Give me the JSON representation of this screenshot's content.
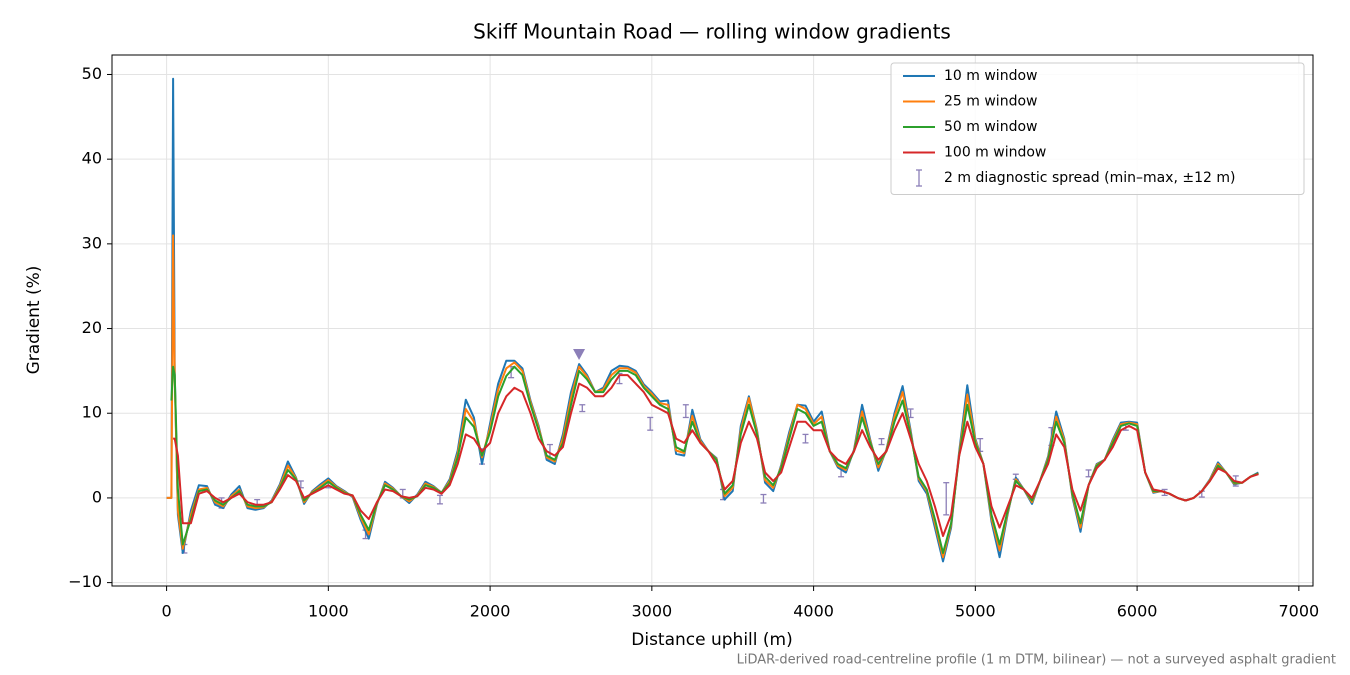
{
  "chart_data": {
    "type": "line",
    "title": "Skiff Mountain Road — rolling window gradients",
    "x_label": "Distance uphill (m)",
    "y_label": "Gradient (%)",
    "footnote": "LiDAR-derived road-centreline profile (1 m DTM, bilinear) — not a surveyed asphalt gradient",
    "xlim": [
      -337.5,
      7087.5
    ],
    "ylim": [
      -10.4,
      52.3
    ],
    "xticks": [
      0,
      1000,
      2000,
      3000,
      4000,
      5000,
      6000,
      7000
    ],
    "yticks": [
      {
        "value": -10,
        "label": "−10"
      },
      0,
      10,
      20,
      30,
      40,
      50
    ],
    "grid": true,
    "legend": "upper right",
    "x": [
      0,
      30,
      40,
      50,
      70,
      100,
      150,
      200,
      250,
      300,
      350,
      400,
      450,
      500,
      550,
      600,
      650,
      700,
      750,
      800,
      850,
      900,
      950,
      1000,
      1050,
      1100,
      1150,
      1200,
      1250,
      1300,
      1350,
      1400,
      1450,
      1500,
      1550,
      1600,
      1650,
      1700,
      1750,
      1800,
      1850,
      1900,
      1950,
      2000,
      2050,
      2100,
      2150,
      2200,
      2250,
      2300,
      2350,
      2400,
      2450,
      2500,
      2550,
      2600,
      2650,
      2700,
      2750,
      2800,
      2850,
      2900,
      2950,
      3000,
      3050,
      3100,
      3150,
      3200,
      3250,
      3300,
      3350,
      3400,
      3450,
      3500,
      3550,
      3600,
      3650,
      3700,
      3750,
      3800,
      3850,
      3900,
      3950,
      4000,
      4050,
      4100,
      4150,
      4200,
      4250,
      4300,
      4350,
      4400,
      4450,
      4500,
      4550,
      4600,
      4650,
      4700,
      4750,
      4800,
      4850,
      4900,
      4950,
      5000,
      5050,
      5100,
      5150,
      5200,
      5250,
      5300,
      5350,
      5400,
      5450,
      5500,
      5550,
      5600,
      5650,
      5700,
      5750,
      5800,
      5850,
      5900,
      5950,
      6000,
      6050,
      6100,
      6150,
      6200,
      6250,
      6300,
      6350,
      6400,
      6450,
      6500,
      6550,
      6600,
      6650,
      6700,
      6750
    ],
    "series": [
      {
        "name": "10 m window",
        "color": "#1f77b4",
        "values": [
          0,
          0,
          49.5,
          15,
          -2,
          -6.5,
          -1.5,
          1.5,
          1.4,
          -0.8,
          -1.2,
          0.4,
          1.4,
          -1.2,
          -1.4,
          -1.2,
          -0.3,
          1.6,
          4.3,
          2.4,
          -0.7,
          0.8,
          1.6,
          2.3,
          1.4,
          0.8,
          0.1,
          -2.6,
          -4.8,
          -0.8,
          1.9,
          1.2,
          0.2,
          -0.6,
          0.4,
          1.9,
          1.4,
          0.6,
          2.2,
          5.6,
          11.6,
          9.5,
          4,
          8.8,
          13.5,
          16.2,
          16.2,
          15.3,
          11.5,
          8.5,
          4.5,
          4,
          7.5,
          12.5,
          15.8,
          14.5,
          12.5,
          13,
          15,
          15.6,
          15.5,
          15,
          13.4,
          12.5,
          11.4,
          11.5,
          5.2,
          5,
          10.4,
          6.9,
          5.5,
          4.7,
          -0.2,
          0.8,
          8.5,
          12,
          8,
          1.8,
          0.8,
          3.9,
          7.8,
          11,
          10.9,
          9,
          10.2,
          5.5,
          3.6,
          3,
          5.7,
          11,
          6.9,
          3.2,
          5.7,
          10,
          13.2,
          8,
          2,
          0.5,
          -3.5,
          -7.5,
          -3.5,
          5.5,
          13.3,
          7,
          4,
          -2.8,
          -7,
          -1.9,
          2.4,
          1,
          -0.7,
          2,
          4.9,
          10.2,
          7,
          0.1,
          -4,
          1.5,
          4,
          4.5,
          6.9,
          8.9,
          9,
          8.9,
          3,
          0.6,
          0.8,
          0.5,
          0,
          -0.3,
          0,
          0.8,
          2.2,
          4.2,
          3,
          1.6,
          1.8,
          2.5,
          3
        ]
      },
      {
        "name": "25 m window",
        "color": "#ff7f0e",
        "values": [
          0,
          0,
          31,
          14,
          -1.5,
          -6,
          -2,
          1,
          1.2,
          -0.5,
          -1,
          0.2,
          1,
          -1,
          -1.2,
          -1.1,
          -0.4,
          1.4,
          3.8,
          2.3,
          -0.5,
          0.7,
          1.4,
          2.1,
          1.3,
          0.7,
          0.2,
          -2.3,
          -4.3,
          -0.7,
          1.7,
          1.1,
          0.2,
          -0.4,
          0.3,
          1.7,
          1.3,
          0.6,
          2,
          5.2,
          10.5,
          9,
          4.8,
          8.3,
          12.8,
          15.3,
          16,
          15,
          11.3,
          8.3,
          4.8,
          4.3,
          7,
          11.8,
          15.5,
          14.3,
          12.5,
          12.8,
          14.5,
          15.3,
          15.3,
          14.8,
          13.2,
          12.3,
          11.2,
          11,
          5.6,
          5.3,
          9.7,
          6.7,
          5.5,
          4.6,
          0.2,
          1.2,
          8,
          11.8,
          7.8,
          2.1,
          1.2,
          3.7,
          7.4,
          11,
          10.5,
          8.7,
          9.6,
          5.5,
          3.8,
          3.3,
          5.6,
          10.2,
          6.7,
          3.6,
          5.6,
          9.6,
          12.5,
          7.7,
          2.3,
          0.8,
          -3,
          -7,
          -3.2,
          5.2,
          12.2,
          6.8,
          4,
          -2.4,
          -6.2,
          -1.7,
          2.2,
          1,
          -0.5,
          2,
          4.7,
          9.6,
          6.8,
          0.3,
          -3.5,
          1.5,
          3.9,
          4.5,
          6.7,
          8.7,
          8.9,
          8.7,
          3,
          0.7,
          0.8,
          0.5,
          0,
          -0.3,
          0,
          0.8,
          2.1,
          4,
          3,
          1.7,
          1.8,
          2.5,
          2.9
        ]
      },
      {
        "name": "50 m window",
        "color": "#2ca02c",
        "values": [
          null,
          11.5,
          15.5,
          14.5,
          1,
          -5.5,
          -2.5,
          0.8,
          1,
          -0.3,
          -0.8,
          0,
          0.8,
          -0.8,
          -1,
          -1,
          -0.5,
          1.2,
          3.3,
          2.2,
          -0.3,
          0.6,
          1.2,
          1.9,
          1.2,
          0.6,
          0.3,
          -2,
          -3.8,
          -0.6,
          1.5,
          1,
          0.2,
          -0.2,
          0.2,
          1.5,
          1.2,
          0.6,
          1.8,
          4.8,
          9.5,
          8.4,
          5,
          7.8,
          12,
          14.4,
          15.5,
          14.5,
          11,
          8,
          5,
          4.5,
          6.5,
          11,
          15,
          14,
          12.5,
          12.5,
          14,
          15,
          15,
          14.5,
          13,
          12,
          11,
          10.5,
          6,
          5.5,
          9,
          6.5,
          5.5,
          4.5,
          0.5,
          1.5,
          7.5,
          11,
          7.5,
          2.5,
          1.5,
          3.5,
          7,
          10.5,
          10,
          8.5,
          9,
          5.5,
          4,
          3.5,
          5.5,
          9.5,
          6.5,
          4,
          5.5,
          9,
          11.5,
          7.5,
          2.5,
          1,
          -2.5,
          -6.5,
          -3,
          5,
          11,
          6.5,
          4,
          -2,
          -5.5,
          -1.5,
          2,
          1,
          -0.3,
          2,
          4.5,
          9,
          6.5,
          0.5,
          -3,
          1.5,
          3.8,
          4.5,
          6.5,
          8.5,
          8.8,
          8.5,
          3,
          0.8,
          0.8,
          0.5,
          0,
          -0.3,
          0,
          0.8,
          2,
          3.8,
          3,
          1.8,
          1.8,
          2.5,
          2.9
        ]
      },
      {
        "name": "100 m window",
        "color": "#d62728",
        "values": [
          null,
          null,
          7,
          7,
          5,
          -3,
          -3,
          0.5,
          0.8,
          0,
          -0.5,
          0,
          0.5,
          -0.5,
          -0.8,
          -0.8,
          -0.5,
          1,
          2.7,
          2,
          0,
          0.5,
          1,
          1.5,
          1,
          0.5,
          0.3,
          -1.5,
          -2.5,
          -0.5,
          1,
          0.8,
          0.2,
          0,
          0.2,
          1.2,
          1,
          0.5,
          1.5,
          4,
          7.5,
          7,
          5.5,
          6.5,
          10,
          12,
          13,
          12.5,
          10,
          7,
          5.5,
          5,
          6,
          10,
          13.5,
          13,
          12,
          12,
          13,
          14.5,
          14.5,
          13.5,
          12.5,
          11,
          10.5,
          10,
          7,
          6.5,
          8,
          6.5,
          5.5,
          4,
          1,
          2,
          6.5,
          9,
          7,
          3,
          2,
          3,
          6,
          9,
          9,
          8,
          8,
          5.5,
          4.5,
          4,
          5.5,
          8,
          6,
          4.5,
          5.5,
          8,
          10,
          7,
          4,
          2,
          -1,
          -4.5,
          -2,
          5,
          9,
          6,
          4,
          -1,
          -3.5,
          -1,
          1.5,
          1,
          0,
          2,
          4,
          7.5,
          6,
          1,
          -1.5,
          1.5,
          3.5,
          4.5,
          6,
          8,
          8.5,
          8,
          3,
          1,
          0.8,
          0.5,
          0,
          -0.3,
          0,
          0.8,
          2,
          3.5,
          3,
          2,
          1.8,
          2.5,
          2.8
        ]
      }
    ],
    "diagnostic": {
      "name": "2 m diagnostic spread (min–max, ±12 m)",
      "color": "#8c7fb8",
      "x": [
        110,
        340,
        560,
        830,
        1000,
        1230,
        1460,
        1690,
        1950,
        2130,
        2370,
        2570,
        2800,
        2990,
        3210,
        3440,
        3690,
        3950,
        4170,
        4420,
        4600,
        4820,
        5030,
        5250,
        5470,
        5700,
        5930,
        6170,
        6400,
        6610
      ],
      "min": [
        -6.5,
        -1.2,
        -1.2,
        1.2,
        1.2,
        -4.8,
        0,
        -0.7,
        4,
        14.2,
        4.5,
        10.2,
        13.5,
        8,
        9.5,
        -0.2,
        -0.6,
        6.5,
        2.5,
        6.3,
        9.5,
        -2,
        5.5,
        2.2,
        6.2,
        2.5,
        8,
        0.3,
        0.1,
        1.4
      ],
      "max": [
        -5.5,
        0,
        -0.2,
        2,
        2,
        -3.8,
        1,
        0.3,
        5.8,
        15.5,
        6.3,
        11,
        14.7,
        9.5,
        11,
        1,
        0.4,
        7.5,
        3.5,
        7,
        10.5,
        1.8,
        7,
        2.8,
        8.3,
        3.3,
        8.8,
        1,
        0.8,
        2.6
      ]
    },
    "marker": {
      "x": 2550,
      "y": 17,
      "color": "#8c7fb8"
    }
  }
}
